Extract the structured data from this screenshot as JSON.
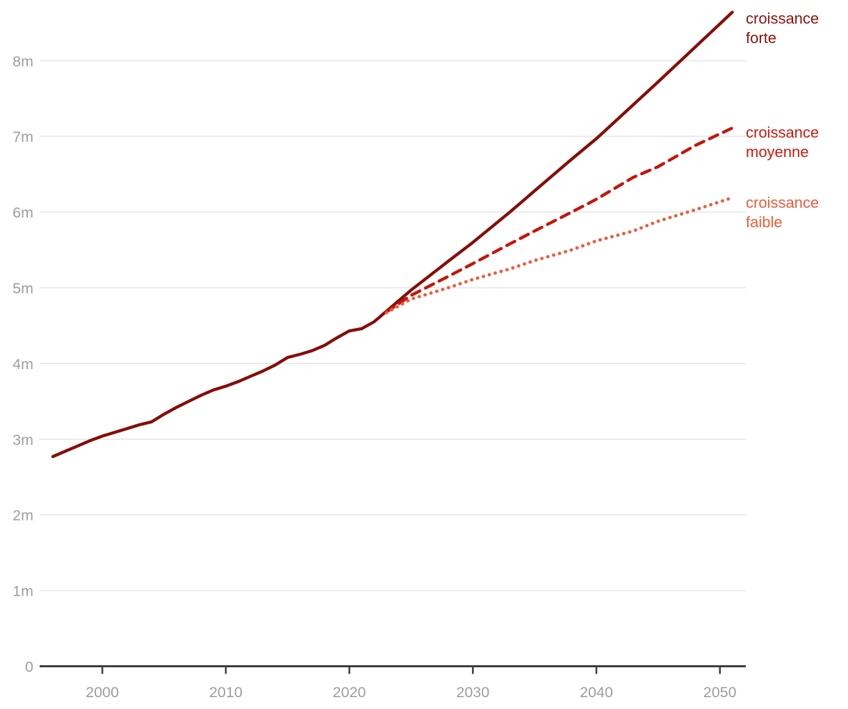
{
  "chart_data": {
    "type": "line",
    "title": "",
    "xlabel": "",
    "ylabel": "",
    "unit": "millions",
    "grid": "horizontal-only",
    "legend_position": "right-of-line-ends",
    "xlim": [
      1994.9,
      2052.2
    ],
    "ylim": [
      0,
      8.8
    ],
    "x_ticks": [
      2000,
      2010,
      2020,
      2030,
      2040,
      2050
    ],
    "x_tick_labels": [
      "2000",
      "2010",
      "2020",
      "2030",
      "2040",
      "2050"
    ],
    "y_ticks": [
      0,
      1,
      2,
      3,
      4,
      5,
      6,
      7,
      8
    ],
    "y_tick_labels": [
      "0",
      "1m",
      "2m",
      "3m",
      "4m",
      "5m",
      "6m",
      "7m",
      "8m"
    ],
    "grid_color": "#e9e9e9",
    "axis_color": "#3d3d3d",
    "tick_label_color": "#9e9e9e",
    "series": [
      {
        "name": "croissance forte",
        "label_lines": [
          "croissance",
          "forte"
        ],
        "style": "solid",
        "color": "#860d08",
        "label_color": "#8b140c",
        "points": [
          [
            1996,
            2.77
          ],
          [
            1997,
            2.84
          ],
          [
            1998,
            2.91
          ],
          [
            1999,
            2.98
          ],
          [
            2000,
            3.04
          ],
          [
            2001,
            3.09
          ],
          [
            2002,
            3.14
          ],
          [
            2003,
            3.19
          ],
          [
            2004,
            3.23
          ],
          [
            2005,
            3.33
          ],
          [
            2006,
            3.42
          ],
          [
            2007,
            3.5
          ],
          [
            2008,
            3.58
          ],
          [
            2009,
            3.65
          ],
          [
            2010,
            3.7
          ],
          [
            2011,
            3.76
          ],
          [
            2012,
            3.83
          ],
          [
            2013,
            3.9
          ],
          [
            2014,
            3.98
          ],
          [
            2015,
            4.08
          ],
          [
            2016,
            4.12
          ],
          [
            2017,
            4.17
          ],
          [
            2018,
            4.24
          ],
          [
            2019,
            4.34
          ],
          [
            2020,
            4.43
          ],
          [
            2021,
            4.46
          ],
          [
            2022,
            4.55
          ],
          [
            2023,
            4.69
          ],
          [
            2025,
            4.97
          ],
          [
            2028,
            5.35
          ],
          [
            2030,
            5.6
          ],
          [
            2033,
            6.0
          ],
          [
            2035,
            6.28
          ],
          [
            2038,
            6.7
          ],
          [
            2040,
            6.97
          ],
          [
            2043,
            7.42
          ],
          [
            2045,
            7.72
          ],
          [
            2048,
            8.18
          ],
          [
            2051,
            8.64
          ]
        ]
      },
      {
        "name": "croissance moyenne",
        "label_lines": [
          "croissance",
          "moyenne"
        ],
        "style": "dashed",
        "color": "#c8140a",
        "label_color": "#cc1a0e",
        "points": [
          [
            2023,
            4.68
          ],
          [
            2025,
            4.9
          ],
          [
            2028,
            5.15
          ],
          [
            2030,
            5.32
          ],
          [
            2033,
            5.58
          ],
          [
            2035,
            5.75
          ],
          [
            2038,
            6.0
          ],
          [
            2040,
            6.17
          ],
          [
            2043,
            6.46
          ],
          [
            2045,
            6.6
          ],
          [
            2048,
            6.88
          ],
          [
            2051,
            7.11
          ]
        ]
      },
      {
        "name": "croissance faible",
        "label_lines": [
          "croissance",
          "faible"
        ],
        "style": "dotted",
        "color": "#ee5b3b",
        "label_color": "#ee5b3b",
        "points": [
          [
            2023,
            4.67
          ],
          [
            2025,
            4.85
          ],
          [
            2028,
            5.0
          ],
          [
            2030,
            5.11
          ],
          [
            2033,
            5.25
          ],
          [
            2035,
            5.36
          ],
          [
            2038,
            5.5
          ],
          [
            2040,
            5.62
          ],
          [
            2043,
            5.75
          ],
          [
            2045,
            5.88
          ],
          [
            2048,
            6.03
          ],
          [
            2051,
            6.19
          ]
        ]
      }
    ]
  }
}
